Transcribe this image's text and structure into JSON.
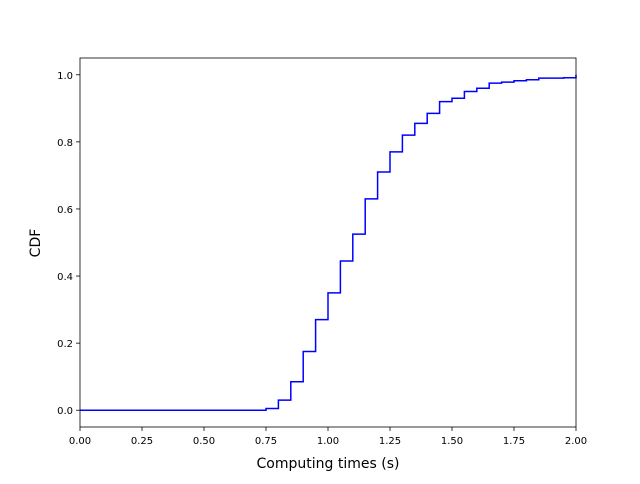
{
  "chart_data": {
    "type": "step",
    "xlabel": "Computing times (s)",
    "ylabel": "CDF",
    "x": [
      0,
      0.75,
      0.8,
      0.85,
      0.9,
      0.95,
      1.0,
      1.05,
      1.1,
      1.15,
      1.2,
      1.25,
      1.3,
      1.35,
      1.4,
      1.45,
      1.5,
      1.55,
      1.6,
      1.65,
      1.7,
      1.75,
      1.8,
      1.85,
      1.9,
      1.95,
      2.0
    ],
    "series": [
      {
        "color": "#0000ff",
        "values": [
          0,
          0.005,
          0.03,
          0.085,
          0.175,
          0.27,
          0.35,
          0.445,
          0.525,
          0.63,
          0.71,
          0.77,
          0.82,
          0.855,
          0.885,
          0.92,
          0.93,
          0.95,
          0.96,
          0.975,
          0.978,
          0.982,
          0.985,
          0.99,
          0.99,
          0.991,
          1.0
        ]
      }
    ],
    "xlim": [
      0,
      2.0
    ],
    "ylim": [
      -0.05,
      1.05
    ],
    "xticks": [
      {
        "value": 0,
        "label": "0.00"
      },
      {
        "value": 0.25,
        "label": "0.25"
      },
      {
        "value": 0.5,
        "label": "0.50"
      },
      {
        "value": 0.75,
        "label": "0.75"
      },
      {
        "value": 1.0,
        "label": "1.00"
      },
      {
        "value": 1.25,
        "label": "1.25"
      },
      {
        "value": 1.5,
        "label": "1.50"
      },
      {
        "value": 1.75,
        "label": "1.75"
      },
      {
        "value": 2.0,
        "label": "2.00"
      }
    ],
    "yticks": [
      {
        "value": 0,
        "label": "0.0"
      },
      {
        "value": 0.2,
        "label": "0.2"
      },
      {
        "value": 0.4,
        "label": "0.4"
      },
      {
        "value": 0.6,
        "label": "0.6"
      },
      {
        "value": 0.8,
        "label": "0.8"
      },
      {
        "value": 1.0,
        "label": "1.0"
      }
    ],
    "grid": false
  }
}
